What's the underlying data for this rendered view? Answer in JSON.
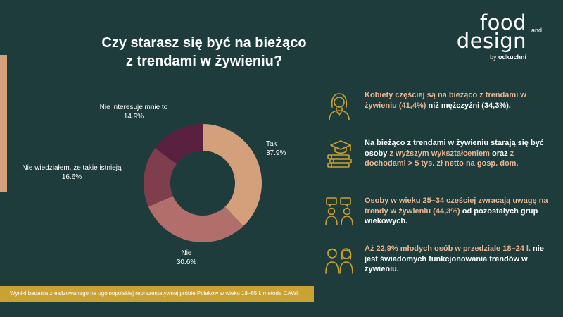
{
  "title": {
    "line1": "Czy starasz się być na bieżąco",
    "line2": "z trendami w żywieniu?"
  },
  "logo": {
    "word1": "food",
    "word_and": "and",
    "word2": "design",
    "by": "by",
    "brand": "odkuchni"
  },
  "chart_data": {
    "type": "pie",
    "variant": "donut",
    "title": "Czy starasz się być na bieżąco z trendami w żywieniu?",
    "slices": [
      {
        "label": "Tak",
        "value_label": "37.9%",
        "value": 37.9,
        "color": "#d4a07c"
      },
      {
        "label": "Nie",
        "value_label": "30.6%",
        "value": 30.6,
        "color": "#b26e6a"
      },
      {
        "label": "Nie wiedziałem, że takie istnieją",
        "value_label": "16.6%",
        "value": 16.6,
        "color": "#7e3e4c"
      },
      {
        "label": "Nie interesuje mnie to",
        "value_label": "14.9%",
        "value": 14.9,
        "color": "#5a2040"
      }
    ]
  },
  "facts": [
    {
      "icon": "woman-icon",
      "parts": [
        {
          "text": "Kobiety częściej są na bieżąco z trendami w żywieniu (41,4%) ",
          "style": "hl"
        },
        {
          "text": "niż mężczyźni (34,3%).",
          "style": "wt"
        }
      ]
    },
    {
      "icon": "graduation-books-icon",
      "parts": [
        {
          "text": "Na bieżąco z trendami w żywieniu starają się być osoby ",
          "style": "wt"
        },
        {
          "text": "z wyższym wykształceniem ",
          "style": "hl"
        },
        {
          "text": "oraz ",
          "style": "wt"
        },
        {
          "text": "z dochodami > 5 tys. zł netto na gosp. dom.",
          "style": "hl"
        }
      ]
    },
    {
      "icon": "people-chat-icon",
      "parts": [
        {
          "text": "Osoby w wieku 25–34 częściej zwracają uwagę na trendy w żywieniu (44,3%) ",
          "style": "hl"
        },
        {
          "text": "od pozostałych grup wiekowych.",
          "style": "wt"
        }
      ]
    },
    {
      "icon": "young-people-icon",
      "parts": [
        {
          "text": "Aż 22,9% młodych osób w przedziale 18–24 l. ",
          "style": "hl"
        },
        {
          "text": "nie jest świadomych funkcjonowania trendów w żywieniu.",
          "style": "wt"
        }
      ]
    }
  ],
  "footer": {
    "text": "Wyniki badania zrealizowanego na ogólnopolskiej reprezentatywnej próbie Polaków w wieku 18–65 l. metodą CAWI"
  },
  "colors": {
    "background": "#1e3c3c",
    "accent": "#d4a07c",
    "highlight_text": "#e9b592",
    "footer_bg": "#c9a233"
  }
}
